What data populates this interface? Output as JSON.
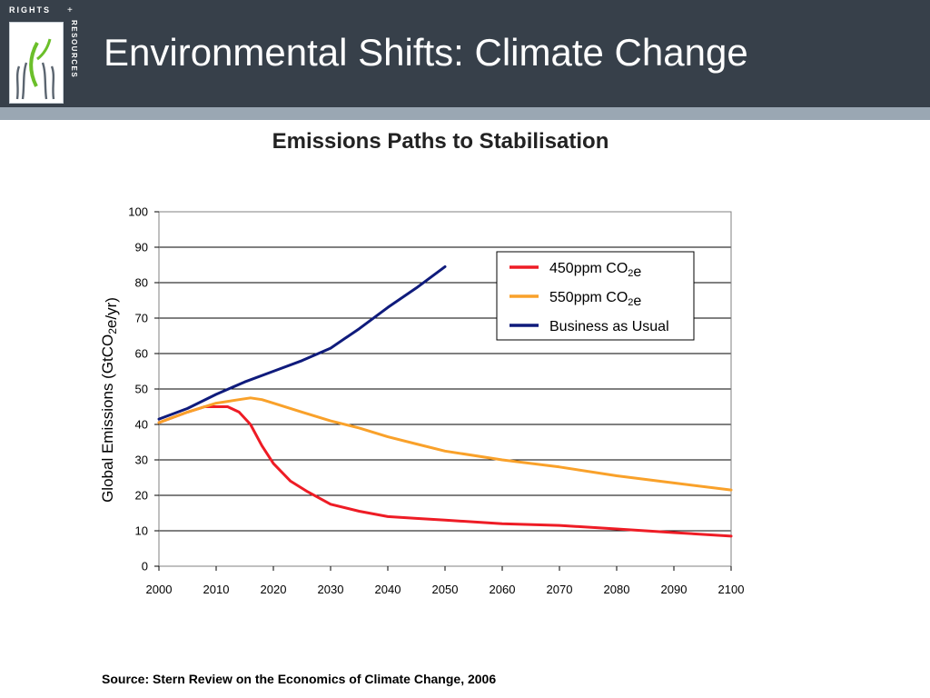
{
  "slide": {
    "title": "Environmental Shifts: Climate Change",
    "source": "Source: Stern Review on the Economics of Climate Change, 2006"
  },
  "logo": {
    "top_text": "RIGHTS",
    "plus": "+",
    "side_text": "RESOURCES",
    "icon": "hands-plant-icon"
  },
  "colors": {
    "header_bg": "#37404a",
    "series_450": "#ee1c25",
    "series_550": "#f9a12a",
    "series_bau": "#0f1b7c"
  },
  "chart_data": {
    "type": "line",
    "title": "Emissions Paths to Stabilisation",
    "ylabel": "Global Emissions (GtCO2e/yr)",
    "xlabel": "",
    "xlim": [
      2000,
      2100
    ],
    "ylim": [
      0,
      100
    ],
    "xticks": [
      2000,
      2010,
      2020,
      2030,
      2040,
      2050,
      2060,
      2070,
      2080,
      2090,
      2100
    ],
    "yticks": [
      0,
      10,
      20,
      30,
      40,
      50,
      60,
      70,
      80,
      90,
      100
    ],
    "grid": "horizontal",
    "legend_position": "top-right",
    "series": [
      {
        "name": "450ppm CO2e",
        "color": "#ee1c25",
        "x": [
          2000,
          2005,
          2008,
          2010,
          2012,
          2014,
          2016,
          2018,
          2020,
          2023,
          2026,
          2030,
          2035,
          2040,
          2045,
          2050,
          2060,
          2070,
          2080,
          2090,
          2100
        ],
        "y": [
          40.5,
          43.5,
          45,
          45,
          45,
          43.5,
          40,
          34,
          29,
          24,
          21,
          17.5,
          15.5,
          14,
          13.5,
          13,
          12,
          11.5,
          10.5,
          9.5,
          8.5
        ]
      },
      {
        "name": "550ppm CO2e",
        "color": "#f9a12a",
        "x": [
          2000,
          2005,
          2010,
          2014,
          2016,
          2018,
          2020,
          2025,
          2030,
          2035,
          2040,
          2045,
          2050,
          2060,
          2070,
          2080,
          2090,
          2100
        ],
        "y": [
          40.5,
          43.5,
          46,
          47,
          47.5,
          47,
          46,
          43.5,
          41,
          39,
          36.5,
          34.5,
          32.5,
          30,
          28,
          25.5,
          23.5,
          21.5
        ]
      },
      {
        "name": "Business as Usual",
        "color": "#0f1b7c",
        "x": [
          2000,
          2005,
          2010,
          2015,
          2020,
          2025,
          2030,
          2035,
          2040,
          2045,
          2050
        ],
        "y": [
          41.5,
          44.5,
          48.5,
          52,
          55,
          58,
          61.5,
          67,
          73,
          78.5,
          84.5
        ]
      }
    ]
  }
}
